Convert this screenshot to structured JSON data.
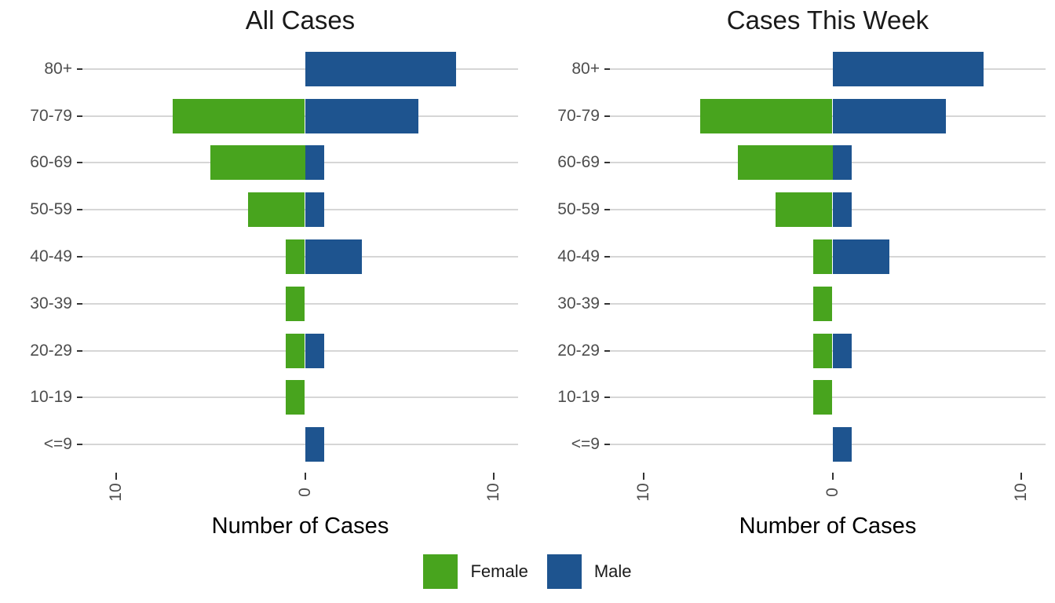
{
  "chart_data": [
    {
      "type": "bar",
      "variant": "diverging-horizontal-pyramid",
      "title": "All Cases",
      "categories": [
        "80+",
        "70-79",
        "60-69",
        "50-59",
        "40-49",
        "30-39",
        "20-29",
        "10-19",
        "<=9"
      ],
      "series": [
        {
          "name": "Female",
          "direction": "left",
          "color": "#48a41e",
          "values": [
            0,
            7,
            5,
            3,
            1,
            1,
            1,
            1,
            0
          ]
        },
        {
          "name": "Male",
          "direction": "right",
          "color": "#1e548f",
          "values": [
            8,
            6,
            1,
            1,
            3,
            0,
            1,
            0,
            1
          ]
        }
      ],
      "xlabel": "Number of Cases",
      "x_ticks": [
        -10,
        0,
        10
      ],
      "x_tick_labels": [
        "10",
        "0",
        "10"
      ],
      "xlim": [
        -11.8,
        11.3
      ],
      "grid": "horizontal-only",
      "legend_position": "bottom"
    },
    {
      "type": "bar",
      "variant": "diverging-horizontal-pyramid",
      "title": "Cases This Week",
      "categories": [
        "80+",
        "70-79",
        "60-69",
        "50-59",
        "40-49",
        "30-39",
        "20-29",
        "10-19",
        "<=9"
      ],
      "series": [
        {
          "name": "Female",
          "direction": "left",
          "color": "#48a41e",
          "values": [
            0,
            7,
            5,
            3,
            1,
            1,
            1,
            1,
            0
          ]
        },
        {
          "name": "Male",
          "direction": "right",
          "color": "#1e548f",
          "values": [
            8,
            6,
            1,
            1,
            3,
            0,
            1,
            0,
            1
          ]
        }
      ],
      "xlabel": "Number of Cases",
      "x_ticks": [
        -10,
        0,
        10
      ],
      "x_tick_labels": [
        "10",
        "0",
        "10"
      ],
      "xlim": [
        -11.8,
        11.3
      ],
      "grid": "horizontal-only",
      "legend_position": "bottom"
    }
  ],
  "legend": {
    "items": [
      {
        "label": "Female",
        "color": "#48a41e"
      },
      {
        "label": "Male",
        "color": "#1e548f"
      }
    ]
  },
  "colors": {
    "background": "#ffffff",
    "gridline": "#d6d6d6",
    "tick": "#333333",
    "axis_text": "#4d4d4d",
    "title_text": "#1a1a1a"
  }
}
